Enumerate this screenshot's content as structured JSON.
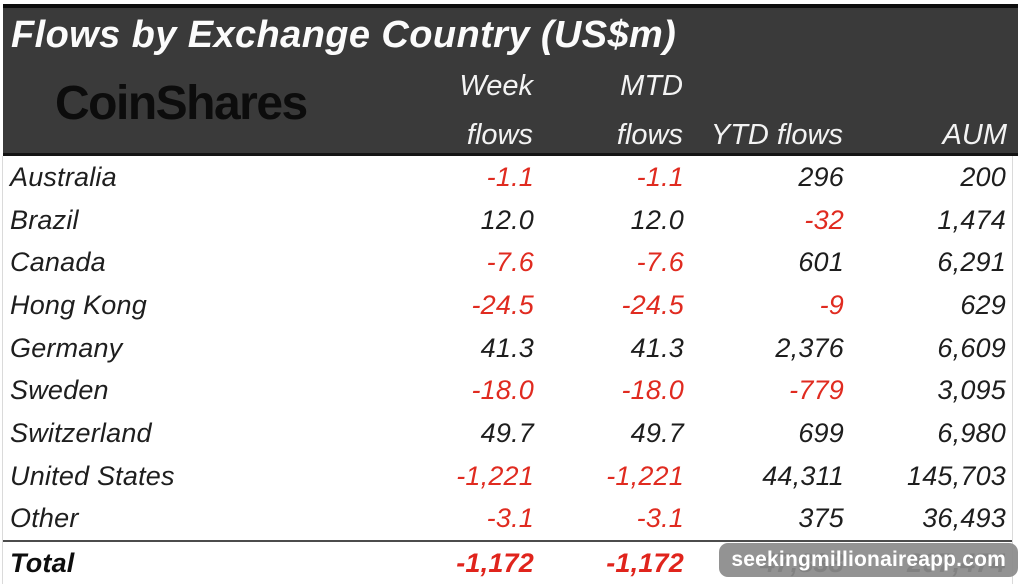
{
  "header": {
    "title": "Flows by Exchange Country (US$m)",
    "logo": "CoinShares",
    "columns": {
      "week_line1": "Week",
      "week_line2": "flows",
      "mtd_line1": "MTD",
      "mtd_line2": "flows",
      "ytd": "YTD flows",
      "aum": "AUM"
    }
  },
  "chart_data": {
    "type": "table",
    "title": "Flows by Exchange Country (US$m)",
    "columns": [
      "Country",
      "Week flows",
      "MTD flows",
      "YTD flows",
      "AUM"
    ],
    "rows": [
      {
        "country": "Australia",
        "week": "-1.1",
        "mtd": "-1.1",
        "ytd": "296",
        "aum": "200"
      },
      {
        "country": "Brazil",
        "week": "12.0",
        "mtd": "12.0",
        "ytd": "-32",
        "aum": "1,474"
      },
      {
        "country": "Canada",
        "week": "-7.6",
        "mtd": "-7.6",
        "ytd": "601",
        "aum": "6,291"
      },
      {
        "country": "Hong Kong",
        "week": "-24.5",
        "mtd": "-24.5",
        "ytd": "-9",
        "aum": "629"
      },
      {
        "country": "Germany",
        "week": "41.3",
        "mtd": "41.3",
        "ytd": "2,376",
        "aum": "6,609"
      },
      {
        "country": "Sweden",
        "week": "-18.0",
        "mtd": "-18.0",
        "ytd": "-779",
        "aum": "3,095"
      },
      {
        "country": "Switzerland",
        "week": "49.7",
        "mtd": "49.7",
        "ytd": "699",
        "aum": "6,980"
      },
      {
        "country": "United States",
        "week": "-1,221",
        "mtd": "-1,221",
        "ytd": "44,311",
        "aum": "145,703"
      },
      {
        "country": "Other",
        "week": "-3.1",
        "mtd": "-3.1",
        "ytd": "375",
        "aum": "36,493"
      }
    ],
    "total": {
      "label": "Total",
      "week": "-1,172",
      "mtd": "-1,172",
      "ytd": "47,838",
      "aum": "207,474"
    },
    "colors": {
      "negative": "#e02b20",
      "positive": "#1e1e1e",
      "header_bg": "#3a3a3a",
      "header_text": "#fbfbfb"
    }
  },
  "watermark": {
    "text": "seekingmillionaireapp.com"
  }
}
